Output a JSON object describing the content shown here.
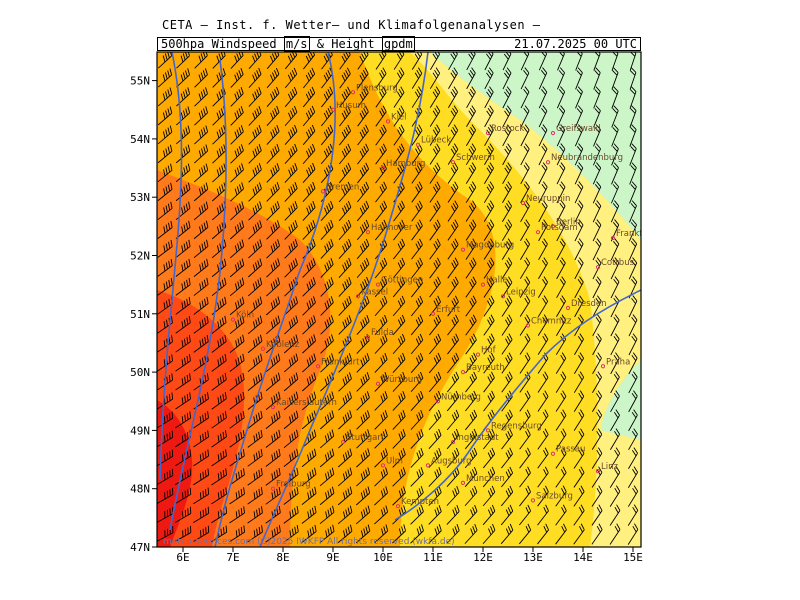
{
  "header": {
    "title": "CETA — Inst. f. Wetter— und Klimafolgenanalysen —",
    "field": "500hpa",
    "windspeed_label": "Windspeed",
    "windspeed_unit": "m/s",
    "amp": "&",
    "height_label": "Height",
    "height_unit": "gpdm",
    "datetime": "21.07.2025  00 UTC"
  },
  "footer": {
    "credit": "meteo-services.com  (C)2025  IWKFP  All rights reserved  (wkfa.de)"
  },
  "axes": {
    "lon_labels": [
      "6E",
      "7E",
      "8E",
      "9E",
      "10E",
      "11E",
      "12E",
      "13E",
      "14E",
      "15E"
    ],
    "lat_labels": [
      "47N",
      "48N",
      "49N",
      "50N",
      "51N",
      "52N",
      "53N",
      "54N",
      "55N"
    ]
  },
  "colors": {
    "light_green": "#ccf5c8",
    "pale_yellow": "#fff080",
    "yellow": "#ffdd22",
    "orange": "#ffaa00",
    "dark_orange": "#ff7a1a",
    "red_orange": "#ff4a16",
    "red": "#ee1a12",
    "contour": "#4466cc",
    "barb": "#000000",
    "city_marker": "#dd3366"
  },
  "cities": [
    {
      "name": "Flensburg",
      "lon": 9.4,
      "lat": 54.8
    },
    {
      "name": "Husum",
      "lon": 9.0,
      "lat": 54.5
    },
    {
      "name": "Kiel",
      "lon": 10.1,
      "lat": 54.3
    },
    {
      "name": "Rostock",
      "lon": 12.1,
      "lat": 54.1
    },
    {
      "name": "Greifswald",
      "lon": 13.4,
      "lat": 54.1
    },
    {
      "name": "Lübeck",
      "lon": 10.7,
      "lat": 53.9
    },
    {
      "name": "Schwerin",
      "lon": 11.4,
      "lat": 53.6
    },
    {
      "name": "Hamburg",
      "lon": 10.0,
      "lat": 53.5
    },
    {
      "name": "Neubrandenburg",
      "lon": 13.3,
      "lat": 53.6
    },
    {
      "name": "Bremen",
      "lon": 8.8,
      "lat": 53.1
    },
    {
      "name": "Neuruppin",
      "lon": 12.8,
      "lat": 52.9
    },
    {
      "name": "Berlin",
      "lon": 13.4,
      "lat": 52.5
    },
    {
      "name": "Potsdam",
      "lon": 13.1,
      "lat": 52.4
    },
    {
      "name": "Frankfurt/O.",
      "lon": 14.6,
      "lat": 52.3
    },
    {
      "name": "Hannover",
      "lon": 9.7,
      "lat": 52.4
    },
    {
      "name": "Magdeburg",
      "lon": 11.6,
      "lat": 52.1
    },
    {
      "name": "Cottbus",
      "lon": 14.3,
      "lat": 51.8
    },
    {
      "name": "Göttingen",
      "lon": 9.9,
      "lat": 51.5
    },
    {
      "name": "Halle",
      "lon": 12.0,
      "lat": 51.5
    },
    {
      "name": "Leipzig",
      "lon": 12.4,
      "lat": 51.3
    },
    {
      "name": "Dresden",
      "lon": 13.7,
      "lat": 51.1
    },
    {
      "name": "Kassel",
      "lon": 9.5,
      "lat": 51.3
    },
    {
      "name": "Erfurt",
      "lon": 11.0,
      "lat": 51.0
    },
    {
      "name": "Chemnitz",
      "lon": 12.9,
      "lat": 50.8
    },
    {
      "name": "Fulda",
      "lon": 9.7,
      "lat": 50.6
    },
    {
      "name": "Hof",
      "lon": 11.9,
      "lat": 50.3
    },
    {
      "name": "Frankfurt",
      "lon": 8.7,
      "lat": 50.1
    },
    {
      "name": "Bayreuth",
      "lon": 11.6,
      "lat": 50.0
    },
    {
      "name": "Praha",
      "lon": 14.4,
      "lat": 50.1
    },
    {
      "name": "Würzburg",
      "lon": 9.9,
      "lat": 49.8
    },
    {
      "name": "Nürnberg",
      "lon": 11.1,
      "lat": 49.5
    },
    {
      "name": "Kaiserslautern",
      "lon": 7.8,
      "lat": 49.4
    },
    {
      "name": "Regensburg",
      "lon": 12.1,
      "lat": 49.0
    },
    {
      "name": "Stuttgart",
      "lon": 9.2,
      "lat": 48.8
    },
    {
      "name": "Ingolstadt",
      "lon": 11.4,
      "lat": 48.8
    },
    {
      "name": "Passau",
      "lon": 13.4,
      "lat": 48.6
    },
    {
      "name": "Linz",
      "lon": 14.3,
      "lat": 48.3
    },
    {
      "name": "Ulm",
      "lon": 10.0,
      "lat": 48.4
    },
    {
      "name": "Augsburg",
      "lon": 10.9,
      "lat": 48.4
    },
    {
      "name": "München",
      "lon": 11.6,
      "lat": 48.1
    },
    {
      "name": "Salzburg",
      "lon": 13.0,
      "lat": 47.8
    },
    {
      "name": "Freiburg",
      "lon": 7.8,
      "lat": 48.0
    },
    {
      "name": "Kempten",
      "lon": 10.3,
      "lat": 47.7
    },
    {
      "name": "Köln",
      "lon": 7.0,
      "lat": 50.9
    },
    {
      "name": "Koblenz",
      "lon": 7.6,
      "lat": 50.4
    }
  ]
}
